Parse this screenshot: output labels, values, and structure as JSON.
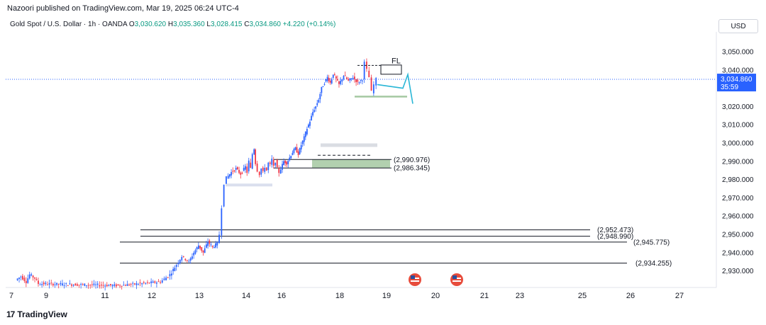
{
  "header": {
    "publisher": "Nazoori published on TradingView.com, Mar 19, 2025 06:24 UTC-4",
    "symbol": "Gold Spot / U.S. Dollar · 1h · OANDA",
    "o_label": "O",
    "o_value": "3,030.620",
    "h_label": "H",
    "h_value": "3,035.360",
    "l_label": "L",
    "l_value": "3,028.415",
    "c_label": "C",
    "c_value": "3,034.860",
    "change": "+4.220 (+0.14%)"
  },
  "currency_button": "USD",
  "brand": {
    "logo": "17",
    "name": "TradingView"
  },
  "colors": {
    "up": "#089981",
    "down": "#f23645",
    "candle_up": "#2962ff",
    "candle_down": "#f23645",
    "price_line": "#2962ff",
    "projection": "#29b6d6",
    "zone_green": "#a5c8a1",
    "zone_gray": "#d1d4dc"
  },
  "chart_data": {
    "type": "candlestick",
    "title": "Gold Spot / U.S. Dollar · 1h · OANDA",
    "ylim": [
      2922,
      3062
    ],
    "y_ticks": [
      "3,050.000",
      "3,040.000",
      "3,020.000",
      "3,010.000",
      "3,000.000",
      "2,990.000",
      "2,980.000",
      "2,970.000",
      "2,960.000",
      "2,950.000",
      "2,940.000",
      "2,930.000"
    ],
    "y_tick_values": [
      3050,
      3040,
      3020,
      3010,
      3000,
      2990,
      2980,
      2970,
      2960,
      2950,
      2940,
      2930
    ],
    "x_ticks": [
      "7",
      "9",
      "11",
      "12",
      "13",
      "14",
      "16",
      "18",
      "19",
      "20",
      "21",
      "23",
      "25",
      "26",
      "27"
    ],
    "x_tick_days": [
      7,
      9,
      11,
      12,
      13,
      14,
      16,
      18,
      19,
      20,
      21,
      23,
      25,
      26,
      27
    ],
    "current_price": {
      "label": "3,034.860",
      "value": 3034.86,
      "countdown": "35:59"
    },
    "levels": [
      {
        "label": "(2,990.976)",
        "value": 2990.976
      },
      {
        "label": "(2,986.345)",
        "value": 2986.345
      },
      {
        "label": "(2,952.473)",
        "value": 2952.473
      },
      {
        "label": "(2,948.990)",
        "value": 2948.99
      },
      {
        "label": "(2,945.775)",
        "value": 2945.775
      },
      {
        "label": "(2,934.255)",
        "value": 2934.255
      }
    ],
    "annotation": "FL",
    "event_markers": [
      {
        "day": 19.6
      },
      {
        "day": 20.45
      }
    ],
    "path_points": [
      [
        7.3,
        2925
      ],
      [
        7.6,
        2927
      ],
      [
        7.9,
        2924
      ],
      [
        8.1,
        2928
      ],
      [
        8.4,
        2926
      ],
      [
        8.6,
        2923
      ],
      [
        11.3,
        2922
      ],
      [
        12.2,
        2924
      ],
      [
        12.4,
        2928
      ],
      [
        12.5,
        2932
      ],
      [
        12.65,
        2938
      ],
      [
        12.8,
        2935
      ],
      [
        12.9,
        2940
      ],
      [
        13.0,
        2944
      ],
      [
        13.1,
        2940
      ],
      [
        13.2,
        2946
      ],
      [
        13.3,
        2943
      ],
      [
        13.4,
        2945
      ],
      [
        13.45,
        2950
      ],
      [
        13.5,
        2965
      ],
      [
        13.55,
        2978
      ],
      [
        13.6,
        2981
      ],
      [
        13.7,
        2984
      ],
      [
        13.8,
        2986
      ],
      [
        13.9,
        2983
      ],
      [
        14.0,
        2987
      ],
      [
        14.1,
        2984
      ],
      [
        14.2,
        2990
      ],
      [
        14.3,
        2986
      ],
      [
        14.4,
        2994
      ],
      [
        14.5,
        2997
      ],
      [
        14.55,
        2989
      ],
      [
        14.7,
        2985
      ],
      [
        14.8,
        2983
      ],
      [
        14.9,
        2986
      ],
      [
        15.0,
        2984
      ],
      [
        15.1,
        2987
      ],
      [
        15.2,
        2985
      ],
      [
        15.3,
        2989
      ],
      [
        15.4,
        2988
      ],
      [
        15.5,
        2991
      ],
      [
        15.6,
        2987
      ],
      [
        15.7,
        2990
      ],
      [
        15.8,
        2986
      ],
      [
        15.9,
        2984
      ],
      [
        16.0,
        2986
      ],
      [
        16.1,
        2990
      ],
      [
        16.2,
        2989
      ],
      [
        16.3,
        2992
      ],
      [
        16.4,
        2995
      ],
      [
        16.5,
        2997
      ],
      [
        16.6,
        2994
      ],
      [
        16.7,
        2999
      ],
      [
        16.8,
        3003
      ],
      [
        16.9,
        3008
      ],
      [
        17.0,
        3012
      ],
      [
        17.1,
        3017
      ],
      [
        17.2,
        3020
      ],
      [
        17.3,
        3024
      ],
      [
        17.4,
        3030
      ],
      [
        17.5,
        3033
      ],
      [
        17.6,
        3036
      ],
      [
        17.7,
        3033
      ],
      [
        17.8,
        3038
      ],
      [
        17.9,
        3035
      ],
      [
        18.0,
        3032
      ],
      [
        18.1,
        3037
      ],
      [
        18.2,
        3034
      ],
      [
        18.3,
        3036
      ],
      [
        18.4,
        3033
      ],
      [
        18.5,
        3035
      ],
      [
        18.55,
        3044
      ],
      [
        18.6,
        3040
      ],
      [
        18.65,
        3036
      ],
      [
        18.7,
        3028
      ],
      [
        18.75,
        3032
      ],
      [
        18.8,
        3034.86
      ]
    ]
  }
}
